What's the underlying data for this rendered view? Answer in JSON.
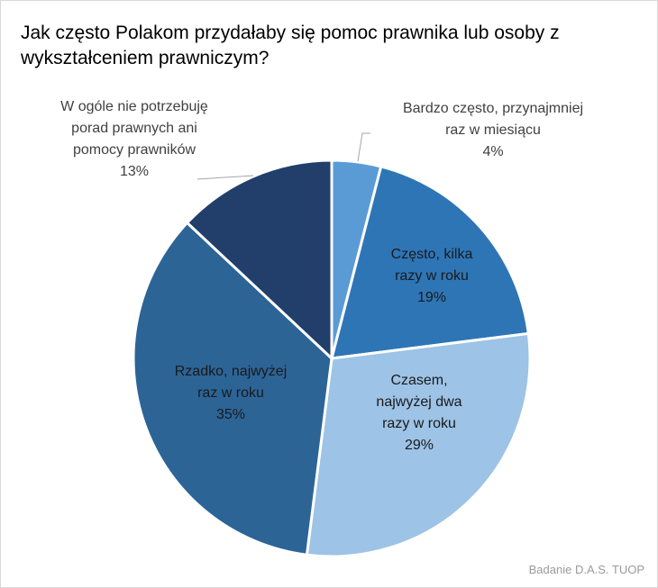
{
  "chart_data": {
    "type": "pie",
    "title": "Jak często Polakom przydałaby się pomoc prawnika lub osoby z wykształceniem prawniczym?",
    "slices": [
      {
        "label": [
          "Bardzo często, przynajmniej",
          "raz w miesiącu"
        ],
        "value": 4,
        "value_label": "4%",
        "color": "#5B9BD5"
      },
      {
        "label": [
          "Często, kilka",
          "razy w roku"
        ],
        "value": 19,
        "value_label": "19%",
        "color": "#2E75B6"
      },
      {
        "label": [
          "Czasem,",
          "najwyżej dwa",
          "razy w roku"
        ],
        "value": 29,
        "value_label": "29%",
        "color": "#9DC3E6"
      },
      {
        "label": [
          "Rzadko, najwyżej",
          "raz w roku"
        ],
        "value": 35,
        "value_label": "35%",
        "color": "#2C6496"
      },
      {
        "label": [
          "W ogóle nie potrzebuję",
          "porad prawnych ani",
          "pomocy prawników"
        ],
        "value": 13,
        "value_label": "13%",
        "color": "#223F6B"
      }
    ],
    "start": "top",
    "direction": "clockwise",
    "source": "Badanie D.A.S. TUOP"
  }
}
